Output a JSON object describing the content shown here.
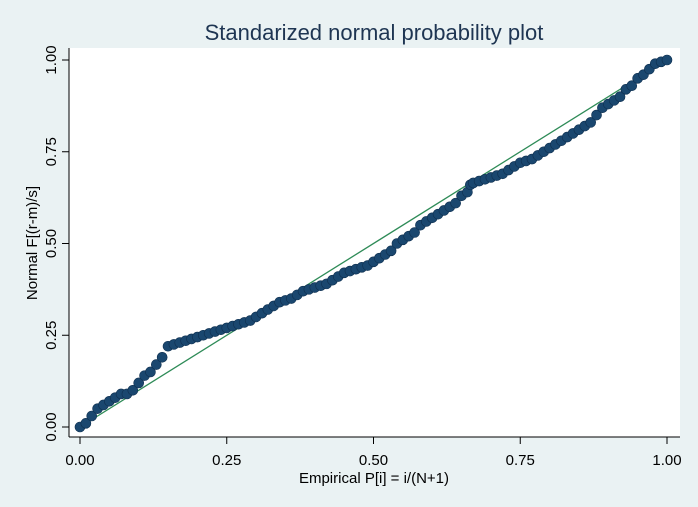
{
  "chart_data": {
    "type": "scatter",
    "title": "Standarized normal probability plot",
    "xlabel": "Empirical P[i] = i/(N+1)",
    "ylabel": "Normal F[(r-m)/s]",
    "xlim": [
      0,
      1
    ],
    "ylim": [
      0,
      1
    ],
    "xticks": [
      "0.00",
      "0.25",
      "0.50",
      "0.75",
      "1.00"
    ],
    "yticks": [
      "0.00",
      "0.25",
      "0.50",
      "0.75",
      "1.00"
    ],
    "grid": false,
    "reference_line": {
      "from": [
        0,
        0
      ],
      "to": [
        1,
        1
      ]
    },
    "colors": {
      "points": "#1a476f",
      "reference_line": "#2e8b57",
      "plot_bg": "#ffffff",
      "page_bg": "#eaf2f3"
    },
    "series": [
      {
        "marker": "circle",
        "x": [
          0.0,
          0.01,
          0.02,
          0.03,
          0.04,
          0.05,
          0.06,
          0.07,
          0.08,
          0.09,
          0.1,
          0.11,
          0.12,
          0.13,
          0.14,
          0.15,
          0.16,
          0.17,
          0.18,
          0.19,
          0.2,
          0.21,
          0.22,
          0.23,
          0.24,
          0.25,
          0.26,
          0.27,
          0.28,
          0.29,
          0.3,
          0.31,
          0.32,
          0.33,
          0.34,
          0.35,
          0.36,
          0.37,
          0.38,
          0.39,
          0.4,
          0.41,
          0.42,
          0.43,
          0.44,
          0.45,
          0.46,
          0.47,
          0.48,
          0.49,
          0.5,
          0.51,
          0.52,
          0.53,
          0.54,
          0.55,
          0.56,
          0.57,
          0.58,
          0.59,
          0.6,
          0.61,
          0.62,
          0.63,
          0.64,
          0.65,
          0.66,
          0.665,
          0.67,
          0.68,
          0.69,
          0.7,
          0.71,
          0.72,
          0.73,
          0.74,
          0.75,
          0.76,
          0.77,
          0.78,
          0.79,
          0.8,
          0.81,
          0.82,
          0.83,
          0.84,
          0.85,
          0.86,
          0.87,
          0.88,
          0.89,
          0.9,
          0.91,
          0.92,
          0.93,
          0.94,
          0.95,
          0.96,
          0.97,
          0.98,
          0.99,
          1.0
        ],
        "y": [
          0.0,
          0.01,
          0.03,
          0.05,
          0.06,
          0.07,
          0.08,
          0.09,
          0.09,
          0.1,
          0.12,
          0.14,
          0.15,
          0.17,
          0.19,
          0.22,
          0.225,
          0.23,
          0.235,
          0.24,
          0.245,
          0.25,
          0.255,
          0.26,
          0.265,
          0.27,
          0.275,
          0.28,
          0.285,
          0.29,
          0.3,
          0.31,
          0.32,
          0.33,
          0.34,
          0.345,
          0.35,
          0.36,
          0.37,
          0.375,
          0.38,
          0.385,
          0.39,
          0.4,
          0.41,
          0.42,
          0.425,
          0.43,
          0.435,
          0.44,
          0.45,
          0.46,
          0.47,
          0.48,
          0.5,
          0.51,
          0.52,
          0.53,
          0.55,
          0.56,
          0.57,
          0.58,
          0.59,
          0.6,
          0.61,
          0.63,
          0.64,
          0.66,
          0.665,
          0.67,
          0.675,
          0.68,
          0.685,
          0.69,
          0.7,
          0.71,
          0.72,
          0.725,
          0.73,
          0.74,
          0.75,
          0.76,
          0.77,
          0.78,
          0.79,
          0.8,
          0.81,
          0.82,
          0.83,
          0.85,
          0.87,
          0.88,
          0.89,
          0.9,
          0.92,
          0.93,
          0.95,
          0.96,
          0.975,
          0.99,
          0.995,
          1.0
        ]
      }
    ]
  }
}
